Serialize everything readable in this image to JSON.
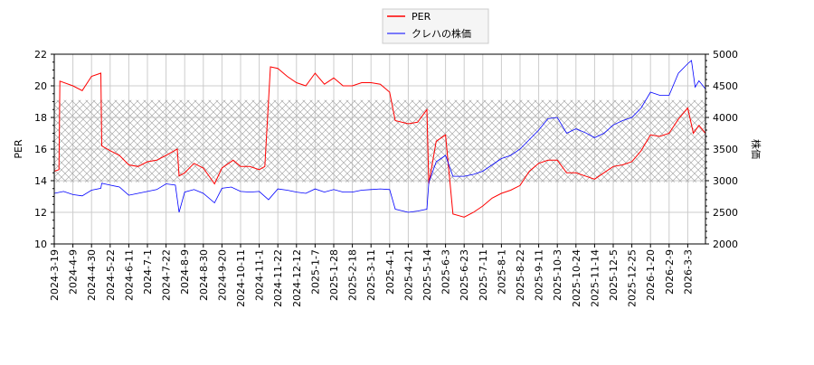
{
  "chart_data": {
    "type": "line",
    "title": "",
    "legend": {
      "placement": "top-center",
      "entries": [
        "PER",
        "クレハの株価"
      ]
    },
    "xlabel": "",
    "ylabel_left": "PER",
    "ylabel_right": "株価",
    "ylim_left": [
      10,
      22
    ],
    "ylim_right": [
      2000,
      5000
    ],
    "yticks_left": [
      "10",
      "12",
      "14",
      "16",
      "18",
      "20",
      "22"
    ],
    "yticks_right": [
      "2000",
      "2500",
      "3000",
      "3500",
      "4000",
      "4500",
      "5000"
    ],
    "grid": true,
    "shaded_band_per": [
      13.9,
      19.1
    ],
    "xtick_labels": [
      "2024-3-19",
      "2024-4-9",
      "2024-4-30",
      "2024-5-22",
      "2024-6-11",
      "2024-7-1",
      "2024-7-22",
      "2024-8-9",
      "2024-8-30",
      "2024-9-20",
      "2024-10-11",
      "2024-11-1",
      "2024-11-22",
      "2024-12-12",
      "2025-1-7",
      "2025-1-28",
      "2025-2-18",
      "2025-3-11",
      "2025-4-1",
      "2025-4-21",
      "2025-5-14",
      "2025-6-3",
      "2025-6-23",
      "2025-7-11",
      "2025-8-1",
      "2025-8-22",
      "2025-9-11",
      "2025-10-3",
      "2025-10-24",
      "2025-11-14",
      "2025-12-5",
      "2025-12-25",
      "2026-1-20",
      "2026-2-9",
      "2026-3-3"
    ],
    "series": [
      {
        "name": "PER",
        "color": "#ff0000",
        "axis": "left",
        "points": [
          [
            0,
            14.6
          ],
          [
            0.25,
            14.7
          ],
          [
            0.3,
            20.3
          ],
          [
            1,
            20.0
          ],
          [
            1.5,
            19.7
          ],
          [
            2,
            20.6
          ],
          [
            2.5,
            20.8
          ],
          [
            2.55,
            16.2
          ],
          [
            3,
            15.9
          ],
          [
            3.5,
            15.6
          ],
          [
            4,
            15.0
          ],
          [
            4.5,
            14.9
          ],
          [
            5,
            15.2
          ],
          [
            5.5,
            15.3
          ],
          [
            6,
            15.6
          ],
          [
            6.6,
            16.0
          ],
          [
            6.7,
            14.3
          ],
          [
            7,
            14.5
          ],
          [
            7.5,
            15.1
          ],
          [
            8,
            14.8
          ],
          [
            8.6,
            13.8
          ],
          [
            9,
            14.8
          ],
          [
            9.6,
            15.3
          ],
          [
            10,
            14.9
          ],
          [
            10.5,
            14.9
          ],
          [
            11,
            14.7
          ],
          [
            11.3,
            14.9
          ],
          [
            11.6,
            21.2
          ],
          [
            12,
            21.1
          ],
          [
            12.5,
            20.6
          ],
          [
            13,
            20.2
          ],
          [
            13.5,
            20.0
          ],
          [
            14,
            20.8
          ],
          [
            14.5,
            20.1
          ],
          [
            15,
            20.5
          ],
          [
            15.5,
            20.0
          ],
          [
            16,
            20.0
          ],
          [
            16.5,
            20.2
          ],
          [
            17,
            20.2
          ],
          [
            17.5,
            20.1
          ],
          [
            18,
            19.6
          ],
          [
            18.3,
            17.8
          ],
          [
            19,
            17.6
          ],
          [
            19.5,
            17.7
          ],
          [
            20,
            18.5
          ],
          [
            20.1,
            13.8
          ],
          [
            20.5,
            16.5
          ],
          [
            21,
            16.9
          ],
          [
            21.4,
            11.9
          ],
          [
            22,
            11.7
          ],
          [
            22.5,
            12.0
          ],
          [
            23,
            12.4
          ],
          [
            23.5,
            12.9
          ],
          [
            24,
            13.2
          ],
          [
            24.5,
            13.4
          ],
          [
            25,
            13.7
          ],
          [
            25.5,
            14.6
          ],
          [
            26,
            15.1
          ],
          [
            26.5,
            15.3
          ],
          [
            27,
            15.3
          ],
          [
            27.5,
            14.5
          ],
          [
            28,
            14.5
          ],
          [
            28.5,
            14.3
          ],
          [
            29,
            14.1
          ],
          [
            29.5,
            14.5
          ],
          [
            30,
            14.9
          ],
          [
            30.5,
            15.0
          ],
          [
            31,
            15.2
          ],
          [
            31.5,
            15.9
          ],
          [
            32,
            16.9
          ],
          [
            32.5,
            16.8
          ],
          [
            33,
            17.0
          ],
          [
            33.5,
            17.9
          ],
          [
            34,
            18.6
          ],
          [
            34.3,
            17.0
          ],
          [
            34.6,
            17.5
          ],
          [
            34.95,
            17.0
          ]
        ]
      },
      {
        "name": "クレハの株価",
        "color": "#0000ff",
        "axis": "right",
        "points": [
          [
            0,
            2800
          ],
          [
            0.5,
            2830
          ],
          [
            1,
            2780
          ],
          [
            1.5,
            2760
          ],
          [
            2,
            2850
          ],
          [
            2.5,
            2880
          ],
          [
            2.55,
            2960
          ],
          [
            3,
            2930
          ],
          [
            3.5,
            2900
          ],
          [
            4,
            2770
          ],
          [
            4.5,
            2800
          ],
          [
            5,
            2830
          ],
          [
            5.5,
            2860
          ],
          [
            6,
            2950
          ],
          [
            6.5,
            2930
          ],
          [
            6.7,
            2500
          ],
          [
            7,
            2820
          ],
          [
            7.5,
            2860
          ],
          [
            8,
            2800
          ],
          [
            8.6,
            2650
          ],
          [
            9,
            2880
          ],
          [
            9.5,
            2900
          ],
          [
            10,
            2830
          ],
          [
            10.5,
            2820
          ],
          [
            11,
            2830
          ],
          [
            11.5,
            2700
          ],
          [
            12,
            2870
          ],
          [
            12.5,
            2850
          ],
          [
            13,
            2820
          ],
          [
            13.5,
            2800
          ],
          [
            14,
            2870
          ],
          [
            14.5,
            2820
          ],
          [
            15,
            2860
          ],
          [
            15.5,
            2820
          ],
          [
            16,
            2820
          ],
          [
            16.5,
            2850
          ],
          [
            17,
            2860
          ],
          [
            17.5,
            2870
          ],
          [
            18,
            2860
          ],
          [
            18.3,
            2550
          ],
          [
            19,
            2500
          ],
          [
            19.5,
            2520
          ],
          [
            20,
            2550
          ],
          [
            20.1,
            2970
          ],
          [
            20.5,
            3300
          ],
          [
            21,
            3400
          ],
          [
            21.4,
            3070
          ],
          [
            22,
            3070
          ],
          [
            22.5,
            3100
          ],
          [
            23,
            3150
          ],
          [
            23.5,
            3250
          ],
          [
            24,
            3350
          ],
          [
            24.5,
            3400
          ],
          [
            25,
            3500
          ],
          [
            25.5,
            3650
          ],
          [
            26,
            3800
          ],
          [
            26.5,
            3980
          ],
          [
            27,
            4000
          ],
          [
            27.5,
            3750
          ],
          [
            28,
            3820
          ],
          [
            28.5,
            3760
          ],
          [
            29,
            3680
          ],
          [
            29.5,
            3750
          ],
          [
            30,
            3880
          ],
          [
            30.5,
            3950
          ],
          [
            31,
            4000
          ],
          [
            31.5,
            4150
          ],
          [
            32,
            4400
          ],
          [
            32.5,
            4350
          ],
          [
            33,
            4350
          ],
          [
            33.5,
            4700
          ],
          [
            34,
            4850
          ],
          [
            34.2,
            4900
          ],
          [
            34.4,
            4480
          ],
          [
            34.6,
            4580
          ],
          [
            34.95,
            4450
          ]
        ]
      }
    ]
  }
}
